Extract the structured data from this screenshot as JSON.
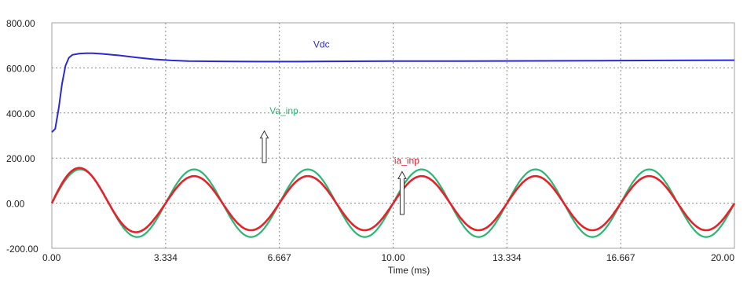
{
  "chart_data": {
    "type": "line",
    "title": "",
    "xlabel": "Time (ms)",
    "ylabel": "",
    "xlim": [
      0,
      20
    ],
    "ylim": [
      -200,
      800
    ],
    "grid": true,
    "x_ticks": [
      0,
      3.334,
      6.667,
      10,
      13.334,
      16.667,
      20
    ],
    "x_tick_labels": [
      "0.00",
      "3.334",
      "6.667",
      "10.00",
      "13.334",
      "16.667",
      "20.00"
    ],
    "y_ticks": [
      -200,
      0,
      200,
      400,
      600,
      800
    ],
    "y_tick_labels": [
      "-200.00",
      "0.00",
      "200.00",
      "400.00",
      "600.00",
      "800.00"
    ],
    "series": [
      {
        "name": "Vdc",
        "color": "#2a2ad0",
        "x": [
          0,
          0.1,
          0.2,
          0.3,
          0.4,
          0.5,
          0.6,
          0.8,
          1.0,
          1.2,
          1.5,
          2.0,
          2.5,
          3.0,
          3.5,
          4.0,
          5.0,
          6.0,
          7.0,
          8.0,
          10.0,
          12.0,
          14.0,
          16.0,
          18.0,
          20.0
        ],
        "values": [
          315,
          330,
          420,
          530,
          610,
          645,
          658,
          663,
          665,
          665,
          662,
          655,
          646,
          638,
          633,
          630,
          629,
          628,
          628,
          629,
          630,
          630,
          631,
          632,
          633,
          634
        ]
      },
      {
        "name": "Va_inp",
        "color": "#2bb673",
        "amplitude": 150,
        "period_ms": 3.334,
        "start_value": 0
      },
      {
        "name": "ia_inp",
        "color": "#e8202a",
        "amplitude": 120,
        "period_ms": 3.334,
        "start_value": 0,
        "initial_peak": 170
      }
    ],
    "annotations": [
      {
        "text": "Vdc",
        "color": "#2a2ad0",
        "x": 7.9,
        "y": 690
      },
      {
        "text": "Va_inp",
        "color": "#2bb673",
        "x": 6.8,
        "y": 395,
        "arrow": true,
        "arrow_from_y": 320,
        "arrow_to_y": 180
      },
      {
        "text": "ia_inp",
        "color": "#e8202a",
        "x": 10.4,
        "y": 175,
        "arrow": true,
        "arrow_from_y": 140,
        "arrow_to_y": -50
      }
    ]
  }
}
